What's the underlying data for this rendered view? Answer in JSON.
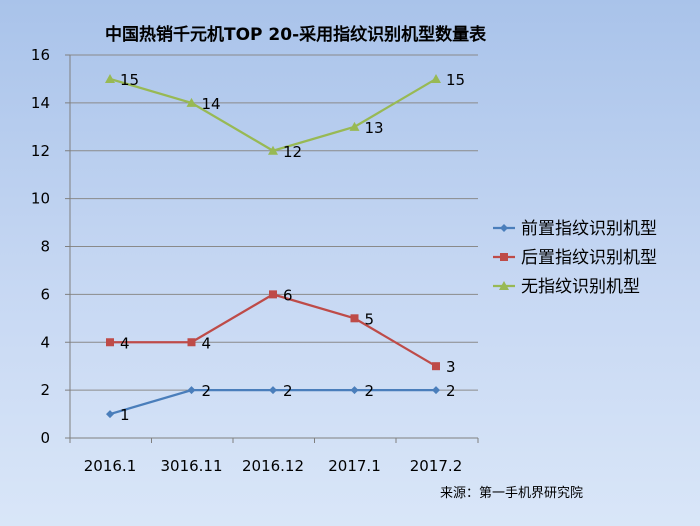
{
  "chart_data": {
    "type": "line",
    "title": "中国热销千元机TOP 20-采用指纹识别机型数量表",
    "categories": [
      "2016.1",
      "3016.11",
      "2016.12",
      "2017.1",
      "2017.2"
    ],
    "ylim": [
      0,
      16
    ],
    "yticks": [
      "0",
      "2",
      "4",
      "6",
      "8",
      "10",
      "12",
      "14",
      "16"
    ],
    "grid": true,
    "legend_position": "right",
    "series": [
      {
        "name": "前置指纹识别机型",
        "values": [
          1,
          2,
          2,
          2,
          2
        ],
        "color": "#4a7ebb",
        "marker": "diamond"
      },
      {
        "name": "后置指纹识别机型",
        "values": [
          4,
          4,
          6,
          5,
          3
        ],
        "color": "#be4b48",
        "marker": "square"
      },
      {
        "name": "无指纹识别机型",
        "values": [
          15,
          14,
          12,
          13,
          15
        ],
        "color": "#98b954",
        "marker": "triangle"
      }
    ],
    "source": "来源：第一手机界研究院"
  }
}
